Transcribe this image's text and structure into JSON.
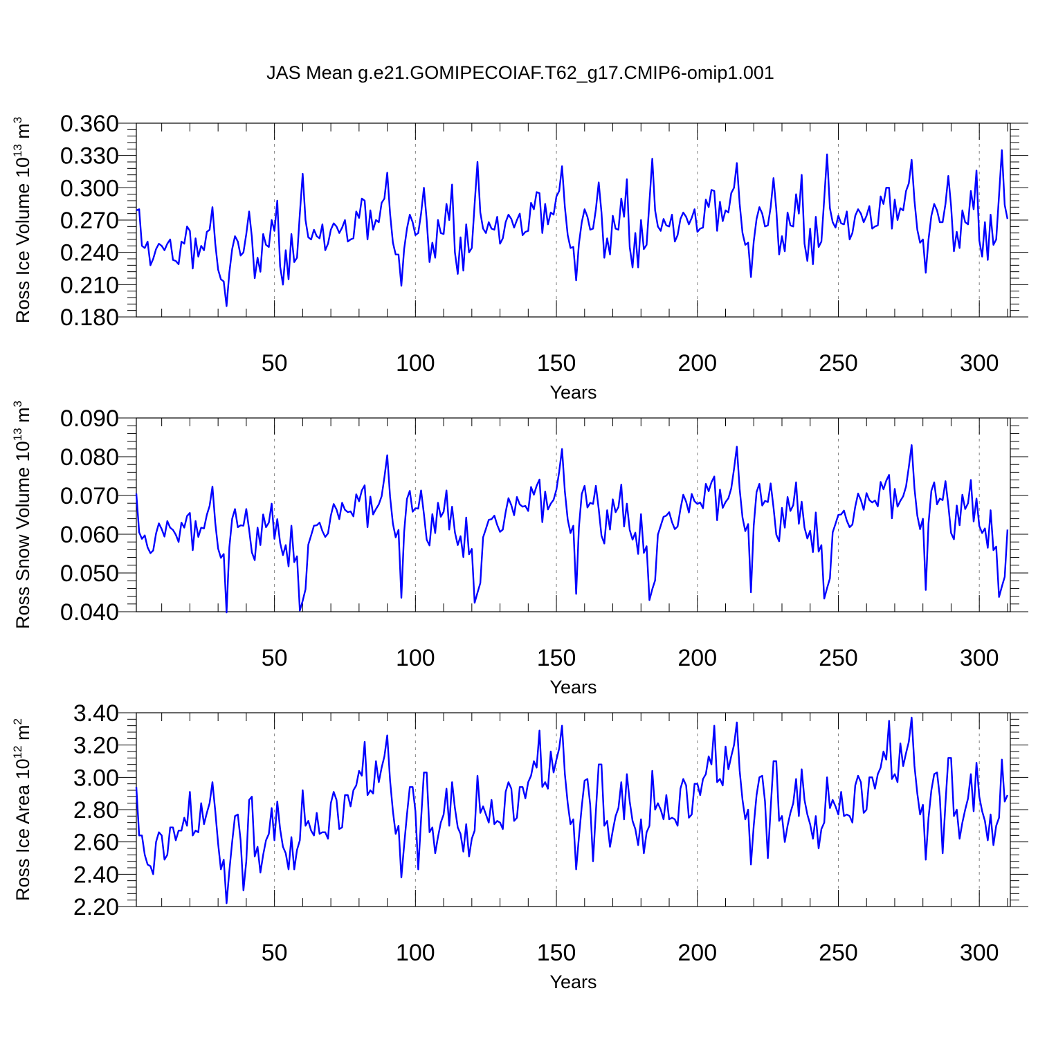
{
  "figure": {
    "title": "JAS Mean g.e21.GOMIPECOIAF.T62_g17.CMIP6-omip1.001",
    "line_color": "#0000ff",
    "grid_color": "#808080",
    "axis_color": "#000000"
  },
  "chart_data": [
    {
      "type": "line",
      "id": "ross-ice-volume",
      "xlabel": "Years",
      "ylabel_parts": [
        "Ross Ice Volume 10",
        "13",
        " m",
        "3"
      ],
      "ylim": [
        0.18,
        0.36
      ],
      "xlim": [
        1,
        311
      ],
      "yticks": [
        "0.180",
        "0.210",
        "0.240",
        "0.270",
        "0.300",
        "0.330",
        "0.360"
      ],
      "xticks": [
        "50",
        "100",
        "150",
        "200",
        "250",
        "300"
      ],
      "start_year": 1,
      "series": [
        {
          "name": "Ross Ice Volume",
          "values": [
            0.279,
            0.28,
            0.246,
            0.244,
            0.25,
            0.228,
            0.234,
            0.243,
            0.248,
            0.246,
            0.242,
            0.248,
            0.252,
            0.233,
            0.232,
            0.229,
            0.25,
            0.248,
            0.264,
            0.26,
            0.225,
            0.253,
            0.236,
            0.246,
            0.242,
            0.259,
            0.261,
            0.282,
            0.248,
            0.224,
            0.215,
            0.213,
            0.19,
            0.221,
            0.243,
            0.255,
            0.25,
            0.237,
            0.24,
            0.257,
            0.278,
            0.254,
            0.216,
            0.235,
            0.222,
            0.257,
            0.247,
            0.245,
            0.27,
            0.26,
            0.288,
            0.227,
            0.21,
            0.242,
            0.215,
            0.257,
            0.231,
            0.235,
            0.276,
            0.313,
            0.27,
            0.254,
            0.252,
            0.261,
            0.255,
            0.253,
            0.266,
            0.242,
            0.248,
            0.261,
            0.267,
            0.264,
            0.258,
            0.263,
            0.27,
            0.25,
            0.252,
            0.253,
            0.278,
            0.272,
            0.29,
            0.288,
            0.252,
            0.279,
            0.261,
            0.27,
            0.268,
            0.286,
            0.29,
            0.314,
            0.276,
            0.249,
            0.238,
            0.238,
            0.209,
            0.243,
            0.262,
            0.275,
            0.268,
            0.256,
            0.258,
            0.276,
            0.3,
            0.27,
            0.231,
            0.249,
            0.235,
            0.27,
            0.258,
            0.257,
            0.285,
            0.27,
            0.303,
            0.24,
            0.22,
            0.254,
            0.223,
            0.266,
            0.24,
            0.244,
            0.285,
            0.324,
            0.277,
            0.262,
            0.258,
            0.268,
            0.262,
            0.261,
            0.273,
            0.248,
            0.253,
            0.268,
            0.275,
            0.271,
            0.263,
            0.27,
            0.276,
            0.256,
            0.259,
            0.26,
            0.286,
            0.28,
            0.296,
            0.295,
            0.258,
            0.285,
            0.266,
            0.277,
            0.275,
            0.292,
            0.297,
            0.32,
            0.282,
            0.256,
            0.244,
            0.245,
            0.214,
            0.248,
            0.268,
            0.28,
            0.273,
            0.261,
            0.262,
            0.28,
            0.305,
            0.277,
            0.235,
            0.253,
            0.238,
            0.274,
            0.262,
            0.261,
            0.29,
            0.273,
            0.308,
            0.245,
            0.226,
            0.258,
            0.226,
            0.27,
            0.243,
            0.247,
            0.287,
            0.327,
            0.279,
            0.264,
            0.26,
            0.271,
            0.265,
            0.264,
            0.275,
            0.25,
            0.256,
            0.271,
            0.277,
            0.273,
            0.266,
            0.272,
            0.28,
            0.259,
            0.262,
            0.263,
            0.289,
            0.282,
            0.298,
            0.297,
            0.26,
            0.287,
            0.269,
            0.279,
            0.277,
            0.295,
            0.3,
            0.323,
            0.285,
            0.258,
            0.247,
            0.249,
            0.217,
            0.25,
            0.271,
            0.282,
            0.276,
            0.264,
            0.265,
            0.282,
            0.309,
            0.28,
            0.238,
            0.255,
            0.241,
            0.277,
            0.265,
            0.264,
            0.294,
            0.276,
            0.312,
            0.248,
            0.232,
            0.262,
            0.229,
            0.273,
            0.245,
            0.25,
            0.29,
            0.331,
            0.281,
            0.268,
            0.263,
            0.274,
            0.267,
            0.266,
            0.278,
            0.252,
            0.258,
            0.274,
            0.28,
            0.276,
            0.268,
            0.274,
            0.283,
            0.262,
            0.264,
            0.265,
            0.292,
            0.285,
            0.3,
            0.3,
            0.262,
            0.289,
            0.27,
            0.281,
            0.279,
            0.297,
            0.304,
            0.326,
            0.288,
            0.261,
            0.249,
            0.252,
            0.221,
            0.252,
            0.274,
            0.285,
            0.279,
            0.268,
            0.268,
            0.285,
            0.311,
            0.283,
            0.241,
            0.259,
            0.244,
            0.279,
            0.268,
            0.266,
            0.297,
            0.28,
            0.316,
            0.251,
            0.236,
            0.268,
            0.233,
            0.275,
            0.247,
            0.252,
            0.293,
            0.335,
            0.284,
            0.271
          ]
        }
      ]
    },
    {
      "type": "line",
      "id": "ross-snow-volume",
      "xlabel": "Years",
      "ylabel_parts": [
        "Ross Snow Volume 10",
        "13",
        " m",
        "3"
      ],
      "ylim": [
        0.04,
        0.09
      ],
      "xlim": [
        1,
        311
      ],
      "yticks": [
        "0.040",
        "0.050",
        "0.060",
        "0.070",
        "0.080",
        "0.090"
      ],
      "xticks": [
        "50",
        "100",
        "150",
        "200",
        "250",
        "300"
      ],
      "start_year": 1,
      "series": [
        {
          "name": "Ross Snow Volume",
          "values": [
            0.0705,
            0.0605,
            0.0588,
            0.0597,
            0.0566,
            0.0551,
            0.0558,
            0.0602,
            0.0628,
            0.0613,
            0.0594,
            0.0634,
            0.0617,
            0.0611,
            0.0599,
            0.058,
            0.063,
            0.0617,
            0.0647,
            0.0655,
            0.0559,
            0.0634,
            0.0593,
            0.0617,
            0.0615,
            0.065,
            0.0673,
            0.0723,
            0.0629,
            0.0563,
            0.0539,
            0.0549,
            0.0398,
            0.0566,
            0.064,
            0.0665,
            0.0618,
            0.0623,
            0.0622,
            0.0665,
            0.0612,
            0.0553,
            0.0533,
            0.0617,
            0.0572,
            0.0651,
            0.0618,
            0.063,
            0.0679,
            0.0588,
            0.0639,
            0.0578,
            0.0546,
            0.0572,
            0.0517,
            0.0622,
            0.0528,
            0.0543,
            0.0403,
            0.0428,
            0.0458,
            0.0573,
            0.0597,
            0.0622,
            0.0623,
            0.063,
            0.0608,
            0.0593,
            0.0602,
            0.0648,
            0.0678,
            0.0664,
            0.0639,
            0.0681,
            0.0663,
            0.0657,
            0.0659,
            0.0646,
            0.0703,
            0.0685,
            0.0713,
            0.0726,
            0.0618,
            0.0697,
            0.0651,
            0.0665,
            0.0677,
            0.0698,
            0.0747,
            0.0804,
            0.0697,
            0.0627,
            0.0592,
            0.0611,
            0.0436,
            0.0605,
            0.0691,
            0.0712,
            0.0658,
            0.0667,
            0.0666,
            0.0713,
            0.0652,
            0.0586,
            0.0571,
            0.0652,
            0.0603,
            0.0681,
            0.0645,
            0.0658,
            0.0713,
            0.0612,
            0.0671,
            0.0605,
            0.0572,
            0.0595,
            0.0541,
            0.0643,
            0.0548,
            0.0562,
            0.0423,
            0.0449,
            0.0474,
            0.0592,
            0.0614,
            0.0637,
            0.0639,
            0.0648,
            0.0624,
            0.0606,
            0.0612,
            0.0657,
            0.0693,
            0.0675,
            0.0649,
            0.0696,
            0.0677,
            0.0671,
            0.0673,
            0.066,
            0.0722,
            0.0702,
            0.0725,
            0.0741,
            0.0631,
            0.071,
            0.0664,
            0.0679,
            0.0689,
            0.0715,
            0.0762,
            0.082,
            0.071,
            0.0638,
            0.0603,
            0.0622,
            0.0446,
            0.0618,
            0.0704,
            0.0725,
            0.0669,
            0.0681,
            0.0678,
            0.0725,
            0.0665,
            0.0596,
            0.0576,
            0.0662,
            0.0612,
            0.069,
            0.0657,
            0.067,
            0.0728,
            0.062,
            0.0679,
            0.0611,
            0.0586,
            0.0604,
            0.0549,
            0.0652,
            0.0552,
            0.0569,
            0.043,
            0.0458,
            0.0481,
            0.0599,
            0.0622,
            0.0645,
            0.0648,
            0.0657,
            0.0631,
            0.0613,
            0.062,
            0.0665,
            0.0702,
            0.0684,
            0.0656,
            0.0704,
            0.0685,
            0.0678,
            0.0682,
            0.0667,
            0.073,
            0.0711,
            0.0734,
            0.0749,
            0.0636,
            0.0715,
            0.0668,
            0.0683,
            0.0693,
            0.0718,
            0.0768,
            0.0826,
            0.0716,
            0.0643,
            0.0608,
            0.0626,
            0.045,
            0.0622,
            0.0709,
            0.073,
            0.0674,
            0.0686,
            0.0683,
            0.0731,
            0.0669,
            0.0599,
            0.0582,
            0.0668,
            0.0617,
            0.0696,
            0.066,
            0.0675,
            0.0734,
            0.0627,
            0.0684,
            0.0617,
            0.0589,
            0.0609,
            0.0554,
            0.0656,
            0.0555,
            0.0572,
            0.0434,
            0.0461,
            0.0486,
            0.0605,
            0.0627,
            0.065,
            0.0651,
            0.0661,
            0.0635,
            0.0618,
            0.0625,
            0.0671,
            0.0705,
            0.0688,
            0.0663,
            0.0706,
            0.0688,
            0.0682,
            0.0687,
            0.0672,
            0.0735,
            0.0716,
            0.0738,
            0.0753,
            0.0641,
            0.0717,
            0.0671,
            0.0686,
            0.0698,
            0.0723,
            0.0773,
            0.083,
            0.0718,
            0.0648,
            0.0613,
            0.064,
            0.0456,
            0.0628,
            0.0712,
            0.0734,
            0.0677,
            0.0692,
            0.0688,
            0.0737,
            0.0675,
            0.0603,
            0.0587,
            0.0674,
            0.0623,
            0.0702,
            0.0665,
            0.068,
            0.074,
            0.0633,
            0.0692,
            0.0621,
            0.0603,
            0.0615,
            0.0565,
            0.0662,
            0.0559,
            0.0568,
            0.0438,
            0.0465,
            0.049,
            0.0612
          ]
        }
      ]
    },
    {
      "type": "line",
      "id": "ross-ice-area",
      "xlabel": "Years",
      "ylabel_parts": [
        "Ross Ice Area 10",
        "12",
        " m",
        "2"
      ],
      "ylim": [
        2.2,
        3.4
      ],
      "xlim": [
        1,
        311
      ],
      "yticks": [
        "2.20",
        "2.40",
        "2.60",
        "2.80",
        "3.00",
        "3.20",
        "3.40"
      ],
      "xticks": [
        "50",
        "100",
        "150",
        "200",
        "250",
        "300"
      ],
      "start_year": 1,
      "series": [
        {
          "name": "Ross Ice Area",
          "values": [
            2.94,
            2.64,
            2.64,
            2.52,
            2.46,
            2.45,
            2.4,
            2.6,
            2.66,
            2.64,
            2.49,
            2.52,
            2.69,
            2.69,
            2.61,
            2.67,
            2.67,
            2.75,
            2.7,
            2.91,
            2.64,
            2.67,
            2.66,
            2.84,
            2.71,
            2.78,
            2.84,
            2.97,
            2.79,
            2.59,
            2.43,
            2.49,
            2.22,
            2.42,
            2.6,
            2.76,
            2.77,
            2.61,
            2.3,
            2.48,
            2.86,
            2.88,
            2.51,
            2.57,
            2.41,
            2.52,
            2.61,
            2.65,
            2.81,
            2.61,
            2.85,
            2.68,
            2.57,
            2.53,
            2.43,
            2.63,
            2.43,
            2.55,
            2.61,
            2.92,
            2.7,
            2.73,
            2.67,
            2.64,
            2.78,
            2.65,
            2.66,
            2.66,
            2.62,
            2.84,
            2.91,
            2.86,
            2.68,
            2.69,
            2.89,
            2.89,
            2.82,
            2.92,
            2.95,
            3.04,
            3.01,
            3.22,
            2.89,
            2.92,
            2.9,
            3.1,
            2.97,
            3.06,
            3.13,
            3.26,
            2.98,
            2.79,
            2.65,
            2.7,
            2.38,
            2.58,
            2.77,
            2.94,
            2.94,
            2.79,
            2.43,
            2.74,
            3.03,
            3.03,
            2.66,
            2.69,
            2.53,
            2.63,
            2.72,
            2.77,
            2.93,
            2.7,
            2.97,
            2.81,
            2.69,
            2.65,
            2.54,
            2.71,
            2.51,
            2.62,
            2.67,
            3.01,
            2.78,
            2.82,
            2.77,
            2.72,
            2.86,
            2.71,
            2.73,
            2.72,
            2.68,
            2.91,
            2.97,
            2.93,
            2.73,
            2.75,
            2.94,
            2.94,
            2.87,
            2.97,
            3.01,
            3.1,
            3.06,
            3.29,
            2.94,
            2.97,
            2.93,
            3.16,
            3.03,
            3.11,
            3.18,
            3.32,
            3.02,
            2.84,
            2.71,
            2.74,
            2.43,
            2.63,
            2.82,
            2.98,
            2.99,
            2.83,
            2.48,
            2.79,
            3.08,
            3.08,
            2.7,
            2.73,
            2.57,
            2.67,
            2.76,
            2.81,
            2.97,
            2.74,
            3.02,
            2.85,
            2.73,
            2.68,
            2.58,
            2.74,
            2.53,
            2.66,
            2.7,
            3.04,
            2.8,
            2.84,
            2.8,
            2.74,
            2.89,
            2.74,
            2.75,
            2.74,
            2.7,
            2.93,
            2.99,
            2.95,
            2.75,
            2.77,
            2.96,
            2.96,
            2.89,
            2.99,
            3.02,
            3.13,
            3.08,
            3.32,
            2.97,
            2.99,
            2.95,
            3.19,
            3.05,
            3.13,
            3.2,
            3.34,
            3.04,
            2.86,
            2.74,
            2.8,
            2.46,
            2.7,
            2.89,
            3.0,
            3.01,
            2.85,
            2.5,
            2.81,
            3.1,
            3.1,
            2.73,
            2.76,
            2.6,
            2.7,
            2.78,
            2.84,
            2.99,
            2.76,
            3.05,
            2.86,
            2.77,
            2.71,
            2.62,
            2.76,
            2.56,
            2.68,
            2.72,
            3.0,
            2.81,
            2.86,
            2.82,
            2.77,
            2.91,
            2.76,
            2.77,
            2.76,
            2.72,
            2.95,
            3.01,
            2.97,
            2.78,
            2.8,
            3.0,
            3.0,
            2.93,
            3.02,
            3.06,
            3.16,
            3.11,
            3.35,
            2.99,
            3.02,
            2.97,
            3.21,
            3.07,
            3.15,
            3.22,
            3.37,
            3.07,
            2.9,
            2.77,
            2.83,
            2.49,
            2.75,
            2.92,
            3.02,
            3.03,
            2.88,
            2.53,
            2.84,
            3.12,
            3.12,
            2.76,
            2.8,
            2.62,
            2.72,
            2.8,
            2.87,
            3.02,
            2.79,
            3.09,
            2.88,
            2.79,
            2.73,
            2.61,
            2.77,
            2.58,
            2.7,
            2.75,
            3.11,
            2.85,
            2.89
          ]
        }
      ]
    }
  ]
}
